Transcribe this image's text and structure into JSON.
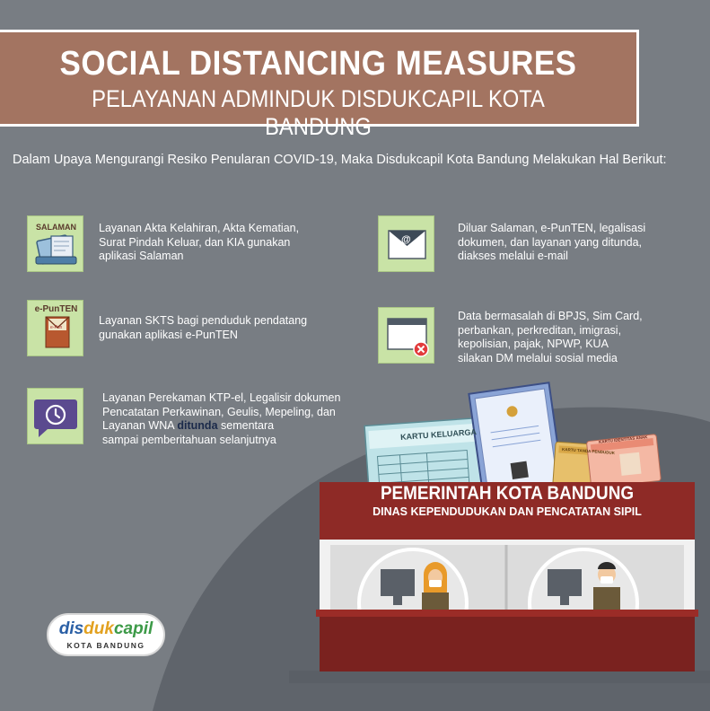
{
  "header": {
    "title": "SOCIAL DISTANCING MEASURES",
    "subtitle": "PELAYANAN ADMINDUK DISDUKCAPIL KOTA BANDUNG"
  },
  "intro": "Dalam Upaya Mengurangi Resiko Penularan COVID-19, Maka Disdukcapil Kota Bandung Melakukan Hal Berikut:",
  "items": {
    "salaman": {
      "icon_label": "SALAMAN",
      "icon": "phone-app-icon",
      "lines": [
        "Layanan Akta Kelahiran, Akta Kematian,",
        "Surat Pindah Keluar, dan KIA gunakan",
        "aplikasi Salaman"
      ]
    },
    "epunten": {
      "icon_label": "e-PunTEN",
      "icon": "envelope-letter-icon",
      "lines": [
        "Layanan SKTS bagi penduduk pendatang",
        "gunakan aplikasi e-PunTEN"
      ]
    },
    "ktp": {
      "icon": "chat-clock-icon",
      "lines_before": [
        "Layanan Perekaman KTP-el, Legalisir dokumen",
        "Pencatatan Perkawinan, Geulis, Mepeling, dan"
      ],
      "line3_prefix": "Layanan WNA ",
      "line3_bold": "ditunda",
      "line3_suffix": " sementara",
      "line4": "sampai pemberitahuan selanjutnya"
    },
    "email": {
      "icon": "email-at-icon",
      "lines": [
        "Diluar Salaman, e-PunTEN, legalisasi",
        "dokumen, dan layanan yang ditunda,",
        "diakses melalui e-mail"
      ]
    },
    "social": {
      "icon": "browser-error-icon",
      "lines": [
        "Data bermasalah di BPJS, Sim Card,",
        "perbankan, perkreditan, imigrasi,",
        "kepolisian, pajak, NPWP,  KUA",
        "silakan DM melalui sosial media"
      ]
    }
  },
  "documents": {
    "kartu_keluarga": "KARTU KELUARGA",
    "kartu_tanda_penduduk": "KARTU TANDA PENDUDUK",
    "kartu_identitas_anak": "KARTU IDENTITAS ANAK"
  },
  "booth": {
    "title": "PEMERINTAH KOTA BANDUNG",
    "subtitle": "DINAS KEPENDUDUKAN DAN PENCATATAN SIPIL"
  },
  "logo": {
    "dis": "dis",
    "duk": "duk",
    "capil": "capil",
    "city": "KOTA BANDUNG"
  },
  "colors": {
    "background": "#787d83",
    "header": "#a37461",
    "icon_box": "#c9e3a6",
    "booth": "#8e2a26",
    "booth_dark": "#6d1d1b"
  }
}
